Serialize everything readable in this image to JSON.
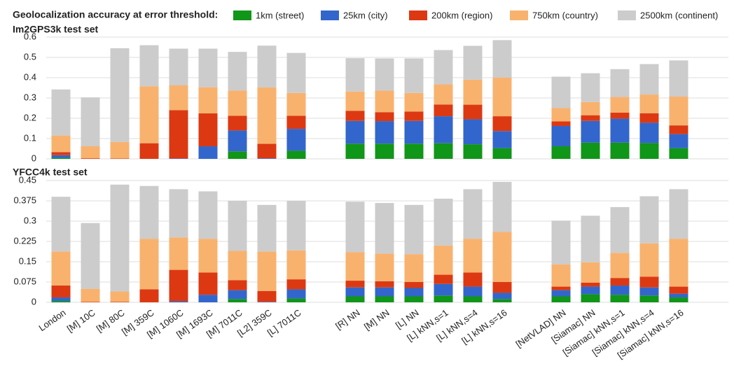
{
  "chart_data": [
    {
      "type": "bar",
      "stacked": true,
      "title": "Im2GPS3k test set",
      "legend_title": "Geolocalization accuracy at error threshold:",
      "ylim": [
        0,
        0.6
      ],
      "yticks": [
        0,
        0.1,
        0.2,
        0.3,
        0.4,
        0.5,
        0.6
      ],
      "grid": true,
      "series": [
        {
          "name": "1km (street)",
          "color": "#109618",
          "values": [
            0.005,
            0,
            0,
            0,
            0,
            0,
            0.037,
            0,
            0.04,
            null,
            0.075,
            0.075,
            0.075,
            0.077,
            0.072,
            0.053,
            null,
            0.062,
            0.08,
            0.08,
            0.078,
            0.053
          ]
        },
        {
          "name": "25km (city)",
          "color": "#3366cc",
          "values": [
            0.013,
            0,
            0,
            0,
            0.002,
            0.062,
            0.103,
            0.003,
            0.108,
            null,
            0.112,
            0.111,
            0.112,
            0.133,
            0.123,
            0.084,
            null,
            0.1,
            0.107,
            0.118,
            0.1,
            0.069
          ]
        },
        {
          "name": "200km (region)",
          "color": "#dc3912",
          "values": [
            0.015,
            0.003,
            0.002,
            0.077,
            0.238,
            0.162,
            0.072,
            0.071,
            0.064,
            null,
            0.05,
            0.044,
            0.046,
            0.058,
            0.072,
            0.073,
            null,
            0.023,
            0.028,
            0.03,
            0.047,
            0.043
          ]
        },
        {
          "name": "750km (country)",
          "color": "#f8b26e",
          "values": [
            0.082,
            0.059,
            0.081,
            0.281,
            0.122,
            0.129,
            0.125,
            0.278,
            0.113,
            null,
            0.095,
            0.106,
            0.092,
            0.099,
            0.123,
            0.19,
            null,
            0.065,
            0.065,
            0.077,
            0.092,
            0.142
          ]
        },
        {
          "name": "2500km (continent)",
          "color": "#cccccc",
          "values": [
            0.227,
            0.241,
            0.462,
            0.202,
            0.181,
            0.19,
            0.19,
            0.206,
            0.197,
            null,
            0.164,
            0.159,
            0.17,
            0.169,
            0.167,
            0.185,
            null,
            0.155,
            0.142,
            0.137,
            0.15,
            0.178
          ]
        }
      ]
    },
    {
      "type": "bar",
      "stacked": true,
      "title": "YFCC4k test set",
      "ylim": [
        0,
        0.45
      ],
      "yticks": [
        0,
        0.075,
        0.15,
        0.225,
        0.3,
        0.375,
        0.45
      ],
      "grid": true,
      "categories": [
        "London",
        "[M] 10C",
        "[M] 80C",
        "[M] 359C",
        "[M] 1060C",
        "[M] 1693C",
        "[M] 7011C",
        "[L2] 359C",
        "[L] 7011C",
        null,
        "[R] NN",
        "[M] NN",
        "[L] NN",
        "[L] kNN,s=1",
        "[L] kNN,s=4",
        "[L] kNN,s=16",
        null,
        "[NetVLAD] NN",
        "[Siamac] NN",
        "[Siamac] kNN,s=1",
        "[Siamac] kNN,s=4",
        "[Siamac] kNN,s=16"
      ],
      "series": [
        {
          "values": [
            0.005,
            0,
            0,
            0,
            0,
            0,
            0.012,
            0,
            0.014,
            null,
            0.022,
            0.022,
            0.022,
            0.025,
            0.022,
            0.012,
            null,
            0.022,
            0.03,
            0.028,
            0.025,
            0.018
          ]
        },
        {
          "values": [
            0.013,
            0,
            0,
            0,
            0.004,
            0.028,
            0.033,
            0.002,
            0.034,
            null,
            0.033,
            0.033,
            0.031,
            0.043,
            0.036,
            0.023,
            null,
            0.023,
            0.028,
            0.034,
            0.03,
            0.014
          ]
        },
        {
          "values": [
            0.044,
            0.002,
            0.002,
            0.048,
            0.116,
            0.082,
            0.037,
            0.04,
            0.037,
            null,
            0.025,
            0.023,
            0.022,
            0.034,
            0.052,
            0.04,
            null,
            0.013,
            0.015,
            0.028,
            0.04,
            0.026
          ]
        },
        {
          "values": [
            0.126,
            0.048,
            0.038,
            0.187,
            0.12,
            0.125,
            0.108,
            0.146,
            0.107,
            null,
            0.105,
            0.102,
            0.103,
            0.108,
            0.125,
            0.185,
            null,
            0.082,
            0.075,
            0.093,
            0.123,
            0.177
          ]
        },
        {
          "values": [
            0.202,
            0.243,
            0.395,
            0.195,
            0.178,
            0.175,
            0.185,
            0.172,
            0.183,
            null,
            0.187,
            0.187,
            0.182,
            0.173,
            0.183,
            0.185,
            null,
            0.162,
            0.172,
            0.169,
            0.174,
            0.183
          ]
        }
      ]
    }
  ]
}
